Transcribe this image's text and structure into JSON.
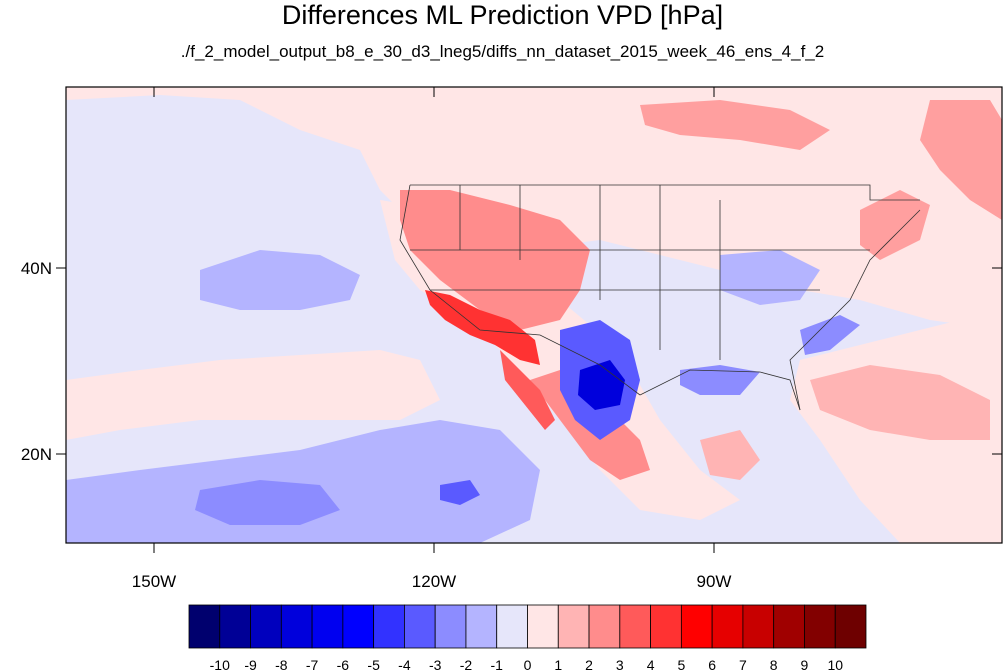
{
  "title": "Differences ML Prediction VPD [hPa]",
  "subtitle": "./f_2_model_output_b8_e_30_d3_lneg5/diffs_nn_dataset_2015_week_46_ens_4_f_2",
  "map": {
    "lon_labels": [
      "150W",
      "120W",
      "90W"
    ],
    "lat_labels": [
      "40N",
      "20N"
    ],
    "ocean_fill": "#e6e6fa",
    "region_fills": {
      "strong_positive": "#ff0000",
      "positive": "#ff7d7d",
      "weak_positive": "#ffe6e6",
      "weak_negative": "#b4b4ff",
      "negative": "#6e6eff",
      "strong_negative": "#0000c8"
    }
  },
  "colorbar": {
    "labels": [
      "-10",
      "-9",
      "-8",
      "-7",
      "-6",
      "-5",
      "-4",
      "-3",
      "-2",
      "-1",
      "0",
      "1",
      "2",
      "3",
      "4",
      "5",
      "6",
      "7",
      "8",
      "9",
      "10"
    ],
    "colors": [
      "#00006e",
      "#000096",
      "#0000be",
      "#0000dc",
      "#0000f0",
      "#0000ff",
      "#3232ff",
      "#5a5aff",
      "#8c8cff",
      "#b4b4ff",
      "#e6e6fa",
      "#ffe6e6",
      "#ffb4b4",
      "#ff8c8c",
      "#ff5a5a",
      "#ff3232",
      "#ff0000",
      "#e60000",
      "#c80000",
      "#a00000",
      "#820000",
      "#6e0000"
    ]
  }
}
